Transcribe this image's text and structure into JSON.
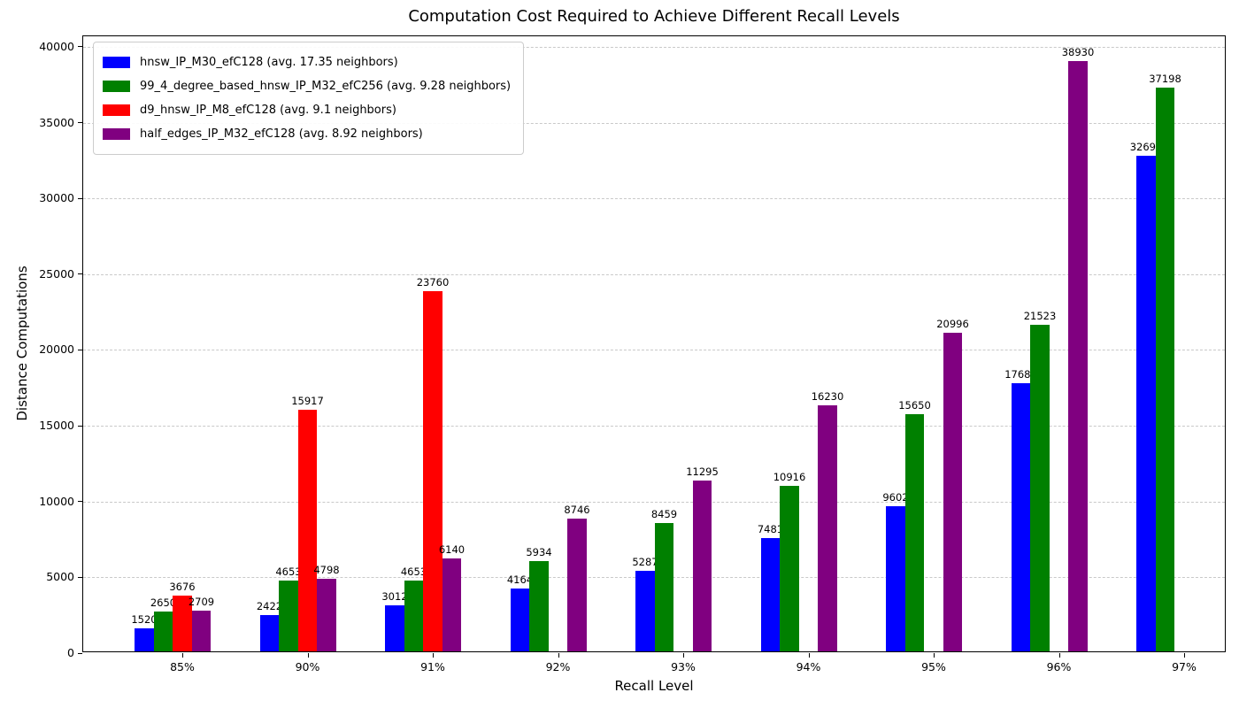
{
  "chart_data": {
    "type": "bar",
    "title": "Computation Cost Required to Achieve Different Recall Levels",
    "xlabel": "Recall Level",
    "ylabel": "Distance Computations",
    "categories": [
      "85%",
      "90%",
      "91%",
      "92%",
      "93%",
      "94%",
      "95%",
      "96%",
      "97%"
    ],
    "series": [
      {
        "name": "hnsw_IP_M30_efC128 (avg. 17.35 neighbors)",
        "color": "#0000ff",
        "values": [
          1520,
          2422,
          3012,
          4164,
          5287,
          7481,
          9602,
          17689,
          32692
        ]
      },
      {
        "name": "99_4_degree_based_hnsw_IP_M32_efC256 (avg. 9.28 neighbors)",
        "color": "#008000",
        "values": [
          2650,
          4653,
          4653,
          5934,
          8459,
          10916,
          15650,
          21523,
          37198
        ]
      },
      {
        "name": "d9_hnsw_IP_M8_efC128 (avg. 9.1 neighbors)",
        "color": "#ff0000",
        "values": [
          3676,
          15917,
          23760,
          null,
          null,
          null,
          null,
          null,
          null
        ]
      },
      {
        "name": "half_edges_IP_M32_efC128 (avg. 8.92 neighbors)",
        "color": "#800080",
        "values": [
          2709,
          4798,
          6140,
          8746,
          11295,
          16230,
          20996,
          38930,
          null
        ]
      }
    ],
    "yticks": [
      0,
      5000,
      10000,
      15000,
      20000,
      25000,
      30000,
      35000,
      40000
    ],
    "ylim": [
      0,
      40700
    ],
    "grid": "horizontal-dashed",
    "grid_color": "#c9c9c9",
    "axis_color": "#000000",
    "legend_position": "upper-left",
    "bar_value_labels": true
  }
}
